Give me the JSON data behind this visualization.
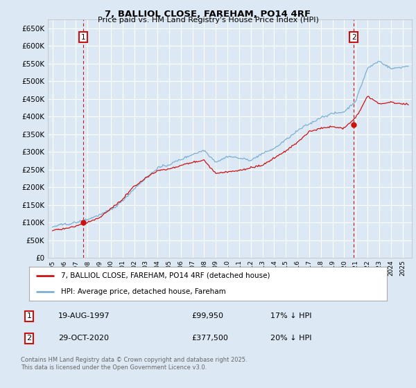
{
  "title": "7, BALLIOL CLOSE, FAREHAM, PO14 4RF",
  "subtitle": "Price paid vs. HM Land Registry's House Price Index (HPI)",
  "background_color": "#dce9f5",
  "plot_bg_color": "#dce9f5",
  "grid_color": "#ffffff",
  "ylim": [
    0,
    675000
  ],
  "yticks": [
    0,
    50000,
    100000,
    150000,
    200000,
    250000,
    300000,
    350000,
    400000,
    450000,
    500000,
    550000,
    600000,
    650000
  ],
  "hpi_color": "#7bafd4",
  "price_color": "#cc1111",
  "sale1_year": 1997.63,
  "sale1_price": 99950,
  "sale2_year": 2020.83,
  "sale2_price": 377500,
  "legend_price_label": "7, BALLIOL CLOSE, FAREHAM, PO14 4RF (detached house)",
  "legend_hpi_label": "HPI: Average price, detached house, Fareham",
  "footer1": "Contains HM Land Registry data © Crown copyright and database right 2025.",
  "footer2": "This data is licensed under the Open Government Licence v3.0.",
  "table_row1": [
    "1",
    "19-AUG-1997",
    "£99,950",
    "17% ↓ HPI"
  ],
  "table_row2": [
    "2",
    "29-OCT-2020",
    "£377,500",
    "20% ↓ HPI"
  ]
}
